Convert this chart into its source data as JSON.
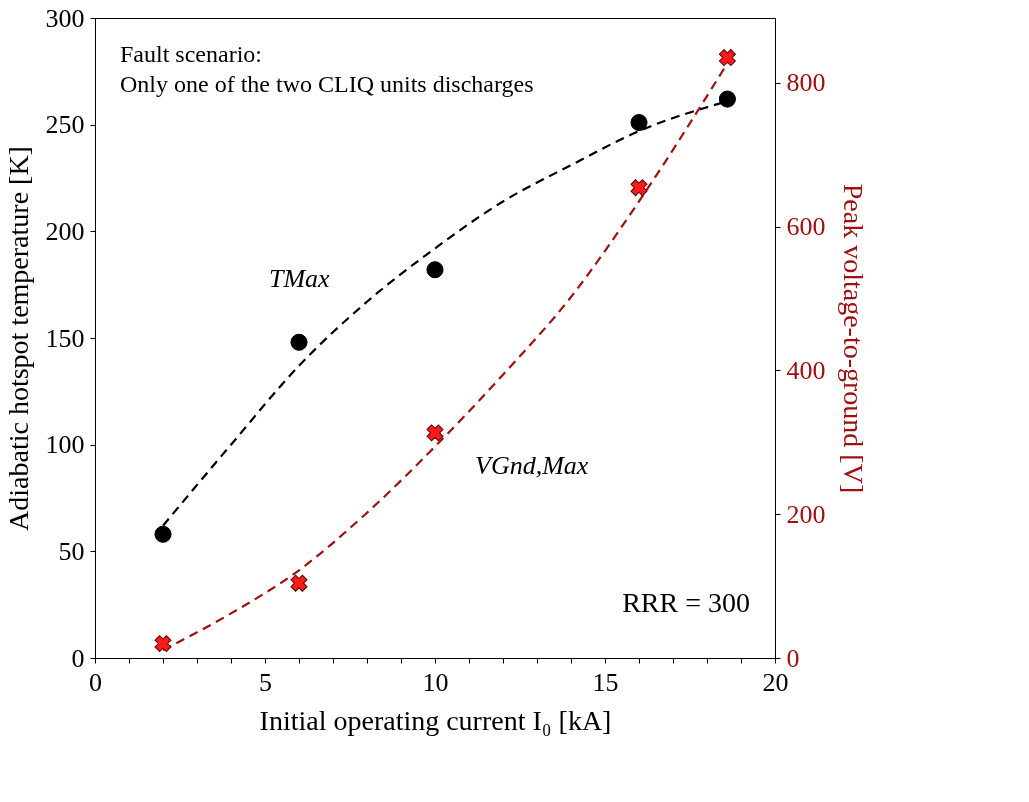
{
  "chart_data": {
    "type": "scatter",
    "xlabel": "Initial operating current I₀ [kA]",
    "ylabel": "Adiabatic hotspot temperature [K]",
    "y2label": "Peak voltage-to-ground [V]",
    "xlim": [
      0,
      20
    ],
    "xticks": [
      0,
      {
        "value": 1,
        "label": null
      },
      {
        "value": 2,
        "label": null
      },
      {
        "value": 3,
        "label": null
      },
      {
        "value": 4,
        "label": null
      },
      5,
      {
        "value": 6,
        "label": null
      },
      {
        "value": 7,
        "label": null
      },
      {
        "value": 8,
        "label": null
      },
      {
        "value": 9,
        "label": null
      },
      10,
      {
        "value": 11,
        "label": null
      },
      {
        "value": 12,
        "label": null
      },
      {
        "value": 13,
        "label": null
      },
      {
        "value": 14,
        "label": null
      },
      15,
      {
        "value": 16,
        "label": null
      },
      {
        "value": 17,
        "label": null
      },
      {
        "value": 18,
        "label": null
      },
      {
        "value": 19,
        "label": null
      },
      20
    ],
    "ylim": [
      0,
      300
    ],
    "yticks": [
      0,
      50,
      100,
      150,
      200,
      250,
      300
    ],
    "y2lim": [
      0,
      890
    ],
    "y2ticks": [
      0,
      200,
      400,
      600,
      800
    ],
    "grid": false,
    "x": [
      2,
      6,
      10,
      16,
      18.6
    ],
    "series": [
      {
        "type": "line",
        "color": "#000000",
        "line_style": "dashed",
        "x": [
          2,
          4,
          6,
          8,
          10,
          12,
          14,
          16,
          18.6
        ],
        "values": [
          62,
          100,
          137,
          167,
          192,
          214,
          231,
          247,
          261
        ]
      },
      {
        "color": "#000000",
        "marker": "circle",
        "values": [
          58,
          148,
          182,
          251,
          262
        ]
      },
      {
        "type": "line",
        "axis": "y2",
        "color": "#a01010",
        "line_style": "dashed",
        "x": [
          2,
          4,
          6,
          8,
          10,
          12,
          14,
          16,
          18.6
        ],
        "values": [
          11,
          62,
          122,
          202,
          294,
          394,
          502,
          635,
          827
        ]
      },
      {
        "axis": "y2",
        "color": "#ff1a1a",
        "marker": "cross",
        "values": [
          20,
          104,
          313,
          654,
          835
        ]
      }
    ],
    "annotations": [
      "Fault scenario:\nOnly one of the two CLIQ units discharges",
      "RRR = 300",
      {
        "text": "TMax",
        "x": 6,
        "y": 148
      },
      {
        "text": "VGnd,Max",
        "x": 10,
        "y": 105
      }
    ]
  }
}
